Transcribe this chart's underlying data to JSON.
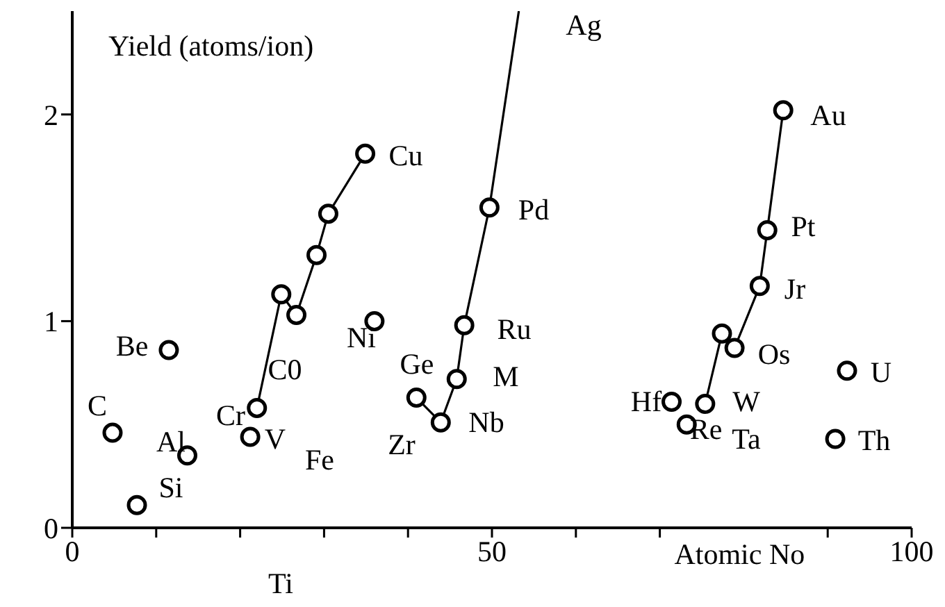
{
  "chart_data": {
    "type": "scatter",
    "xlabel": "Atomic No",
    "ylabel": "Yield (atoms/ion)",
    "xlim": [
      0,
      100
    ],
    "ylim": [
      0,
      2.5
    ],
    "xticks": [
      0,
      {
        "value": 10,
        "label": null
      },
      {
        "value": 20,
        "label": null
      },
      {
        "value": 30,
        "label": null
      },
      {
        "value": 40,
        "label": null
      },
      50,
      {
        "value": 60,
        "label": null
      },
      {
        "value": 70,
        "label": null
      },
      {
        "value": 90,
        "label": null
      },
      100
    ],
    "yticks": [
      0,
      1,
      2
    ],
    "marker": "circle",
    "series": [
      {
        "type": "line",
        "marker": "none",
        "color": "#000000",
        "x": [
          22.0,
          24.9,
          26.7,
          29.1,
          30.5,
          34.9
        ],
        "values": [
          0.58,
          1.13,
          1.03,
          1.32,
          1.52,
          1.81
        ]
      },
      {
        "type": "line",
        "marker": "none",
        "color": "#000000",
        "x": [
          41.0,
          43.9,
          45.8,
          46.7,
          49.7,
          53.2
        ],
        "values": [
          0.63,
          0.51,
          0.72,
          0.98,
          1.55,
          2.5
        ]
      },
      {
        "type": "line",
        "marker": "none",
        "color": "#000000",
        "x": [
          75.4,
          77.4,
          78.9,
          81.9,
          82.8,
          84.7
        ],
        "values": [
          0.6,
          0.94,
          0.87,
          1.17,
          1.44,
          2.02
        ]
      },
      {
        "type": "scatter",
        "color": "#000000",
        "x": [
          4.8,
          7.7,
          11.5,
          13.7,
          21.2,
          22.0,
          24.9,
          26.7,
          29.1,
          30.5,
          34.9,
          36.0,
          41.0,
          43.9,
          45.8,
          46.7,
          49.7,
          71.4,
          73.2,
          75.4,
          77.4,
          78.9,
          81.9,
          82.8,
          84.7,
          90.9,
          92.3
        ],
        "values": [
          0.46,
          0.11,
          0.86,
          0.35,
          0.44,
          0.58,
          1.13,
          1.03,
          1.32,
          1.52,
          1.81,
          1.0,
          0.63,
          0.51,
          0.72,
          0.98,
          1.55,
          0.61,
          0.5,
          0.6,
          0.94,
          0.87,
          1.17,
          1.44,
          2.02,
          0.43,
          0.76
        ]
      }
    ],
    "annotations": [
      "Ag",
      "Cu",
      "Pd",
      "Au",
      "Pt",
      "Jr",
      "Be",
      "Ni",
      "Ru",
      "Ge",
      "C0",
      "M",
      "Os",
      "U",
      "C",
      "Cr",
      "Al",
      "V",
      "Nb",
      "Hf",
      "W",
      "Re",
      "Ta",
      "Th",
      "Fe",
      "Zr",
      "Si",
      "Ti"
    ]
  }
}
